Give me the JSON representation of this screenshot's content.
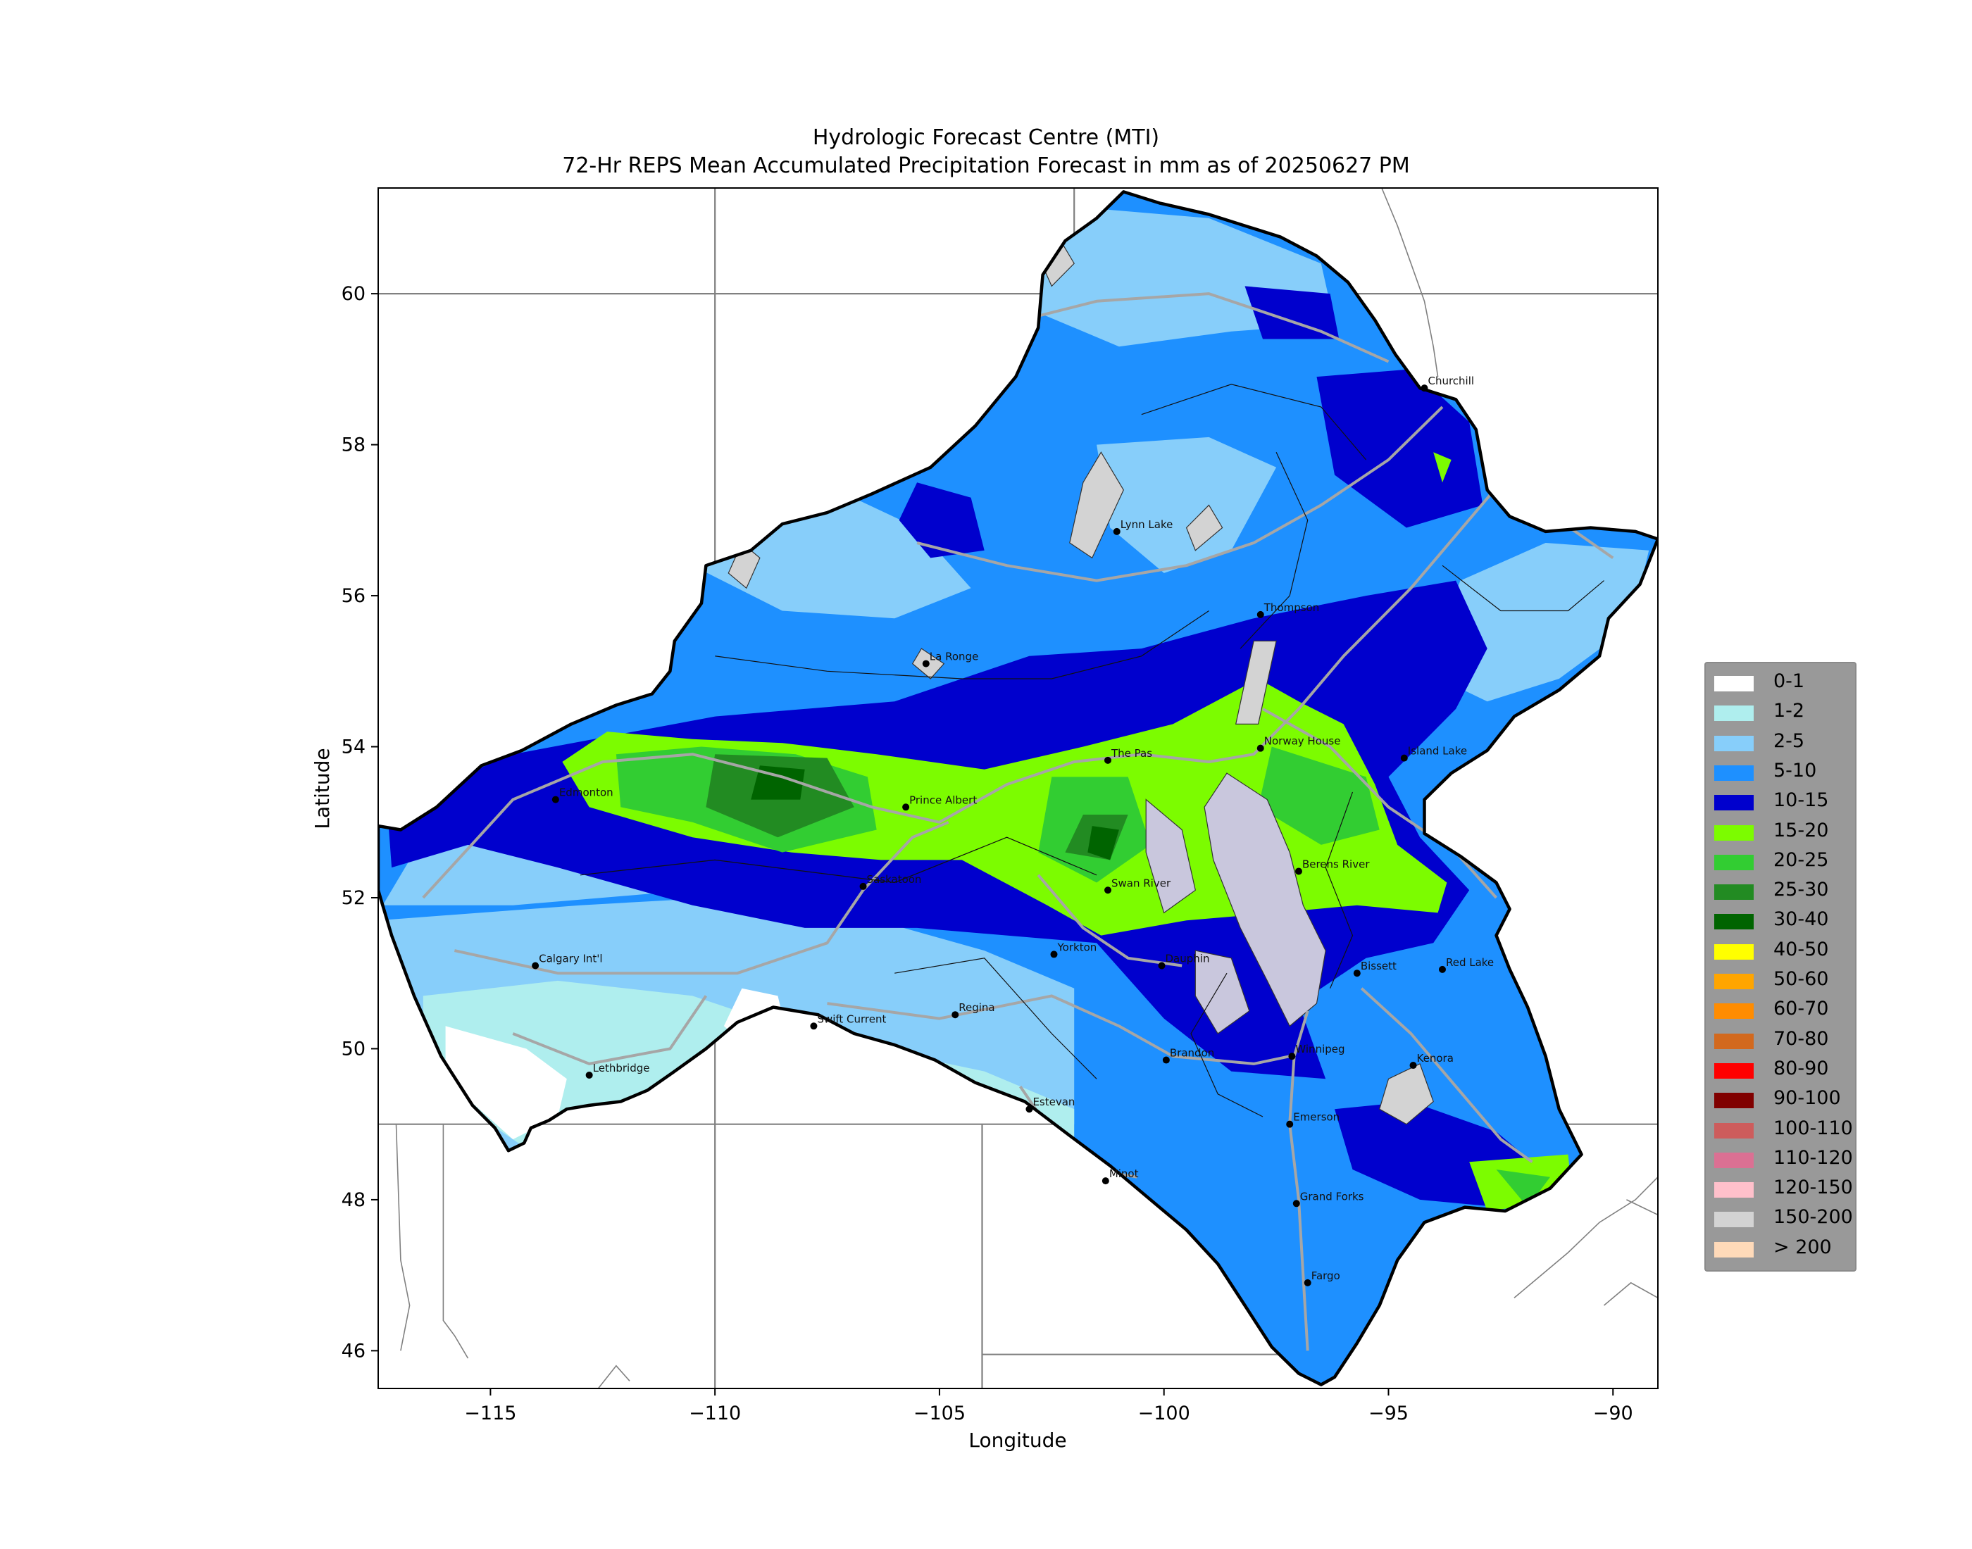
{
  "title": {
    "line1": "Hydrologic Forecast Centre (MTI)",
    "line2": "72-Hr REPS Mean Accumulated Precipitation Forecast in mm as of 20250627 PM"
  },
  "axes": {
    "xlabel": "Longitude",
    "ylabel": "Latitude",
    "xlim": [
      -117.5,
      -89
    ],
    "ylim": [
      45.5,
      61.4
    ],
    "xticks": [
      {
        "value": -115,
        "label": "−115"
      },
      {
        "value": -110,
        "label": "−110"
      },
      {
        "value": -105,
        "label": "−105"
      },
      {
        "value": -100,
        "label": "−100"
      },
      {
        "value": -95,
        "label": "−95"
      },
      {
        "value": -90,
        "label": "−90"
      }
    ],
    "yticks": [
      {
        "value": 46,
        "label": "46"
      },
      {
        "value": 48,
        "label": "48"
      },
      {
        "value": 50,
        "label": "50"
      },
      {
        "value": 52,
        "label": "52"
      },
      {
        "value": 54,
        "label": "54"
      },
      {
        "value": 56,
        "label": "56"
      },
      {
        "value": 58,
        "label": "58"
      },
      {
        "value": 60,
        "label": "60"
      }
    ]
  },
  "legend": {
    "placement": "right",
    "items": [
      {
        "label": "0-1",
        "color": "#ffffff"
      },
      {
        "label": "1-2",
        "color": "#afeeee"
      },
      {
        "label": "2-5",
        "color": "#87cefa"
      },
      {
        "label": "5-10",
        "color": "#1e90ff"
      },
      {
        "label": "10-15",
        "color": "#0000cd"
      },
      {
        "label": "15-20",
        "color": "#7cfc00"
      },
      {
        "label": "20-25",
        "color": "#32cd32"
      },
      {
        "label": "25-30",
        "color": "#228b22"
      },
      {
        "label": "30-40",
        "color": "#006400"
      },
      {
        "label": "40-50",
        "color": "#ffff00"
      },
      {
        "label": "50-60",
        "color": "#ffa500"
      },
      {
        "label": "60-70",
        "color": "#ff8c00"
      },
      {
        "label": "70-80",
        "color": "#d2691e"
      },
      {
        "label": "80-90",
        "color": "#ff0000"
      },
      {
        "label": "90-100",
        "color": "#800000"
      },
      {
        "label": "100-110",
        "color": "#cd5c5c"
      },
      {
        "label": "110-120",
        "color": "#db7093"
      },
      {
        "label": "120-150",
        "color": "#ffc0cb"
      },
      {
        "label": "150-200",
        "color": "#d3d3d3"
      },
      {
        "label": "> 200",
        "color": "#ffdab9"
      }
    ]
  },
  "cities": [
    {
      "name": "Churchill",
      "lon": -94.2,
      "lat": 58.75
    },
    {
      "name": "Lynn Lake",
      "lon": -101.05,
      "lat": 56.85
    },
    {
      "name": "Thompson",
      "lon": -97.85,
      "lat": 55.75
    },
    {
      "name": "La Ronge",
      "lon": -105.3,
      "lat": 55.1
    },
    {
      "name": "The Pas",
      "lon": -101.25,
      "lat": 53.82
    },
    {
      "name": "Norway House",
      "lon": -97.85,
      "lat": 53.98
    },
    {
      "name": "Island Lake",
      "lon": -94.65,
      "lat": 53.85
    },
    {
      "name": "Edmonton",
      "lon": -113.55,
      "lat": 53.3
    },
    {
      "name": "Prince Albert",
      "lon": -105.75,
      "lat": 53.2
    },
    {
      "name": "Saskatoon",
      "lon": -106.7,
      "lat": 52.15
    },
    {
      "name": "Swan River",
      "lon": -101.25,
      "lat": 52.1
    },
    {
      "name": "Berens River",
      "lon": -97.0,
      "lat": 52.35
    },
    {
      "name": "Yorkton",
      "lon": -102.45,
      "lat": 51.25
    },
    {
      "name": "Dauphin",
      "lon": -100.05,
      "lat": 51.1
    },
    {
      "name": "Bissett",
      "lon": -95.7,
      "lat": 51.0
    },
    {
      "name": "Red Lake",
      "lon": -93.8,
      "lat": 51.05
    },
    {
      "name": "Calgary Int'l",
      "lon": -114.0,
      "lat": 51.1
    },
    {
      "name": "Swift Current",
      "lon": -107.8,
      "lat": 50.3
    },
    {
      "name": "Regina",
      "lon": -104.65,
      "lat": 50.45
    },
    {
      "name": "Brandon",
      "lon": -99.95,
      "lat": 49.85
    },
    {
      "name": "Winnipeg",
      "lon": -97.15,
      "lat": 49.9
    },
    {
      "name": "Kenora",
      "lon": -94.45,
      "lat": 49.78
    },
    {
      "name": "Lethbridge",
      "lon": -112.8,
      "lat": 49.65
    },
    {
      "name": "Estevan",
      "lon": -103.0,
      "lat": 49.2
    },
    {
      "name": "Emerson",
      "lon": -97.2,
      "lat": 49.0
    },
    {
      "name": "Minot",
      "lon": -101.3,
      "lat": 48.25
    },
    {
      "name": "Grand Forks",
      "lon": -97.05,
      "lat": 47.95
    },
    {
      "name": "Fargo",
      "lon": -96.8,
      "lat": 46.9
    }
  ]
}
